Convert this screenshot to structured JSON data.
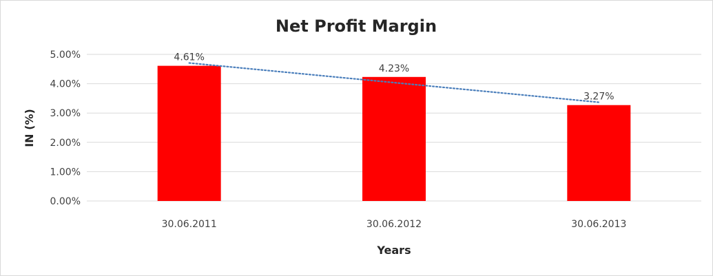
{
  "chart_data": {
    "type": "bar",
    "title": "Net Profit Margin",
    "xlabel": "Years",
    "ylabel": "IN (%)",
    "categories": [
      "30.06.2011",
      "30.06.2012",
      "30.06.2013"
    ],
    "values": [
      4.61,
      4.23,
      3.27
    ],
    "data_labels": [
      "4.61%",
      "4.23%",
      "3.27%"
    ],
    "ylim": [
      0,
      5
    ],
    "y_ticks": [
      0,
      1,
      2,
      3,
      4,
      5
    ],
    "y_tick_labels": [
      "0.00%",
      "1.00%",
      "2.00%",
      "3.00%",
      "4.00%",
      "5.00%"
    ],
    "grid": true,
    "trendline": {
      "type": "linear",
      "style": "dotted"
    },
    "colors": {
      "bar": "#ff0000",
      "trendline": "#4a7ebb",
      "gridline": "#d9d9d9"
    }
  }
}
